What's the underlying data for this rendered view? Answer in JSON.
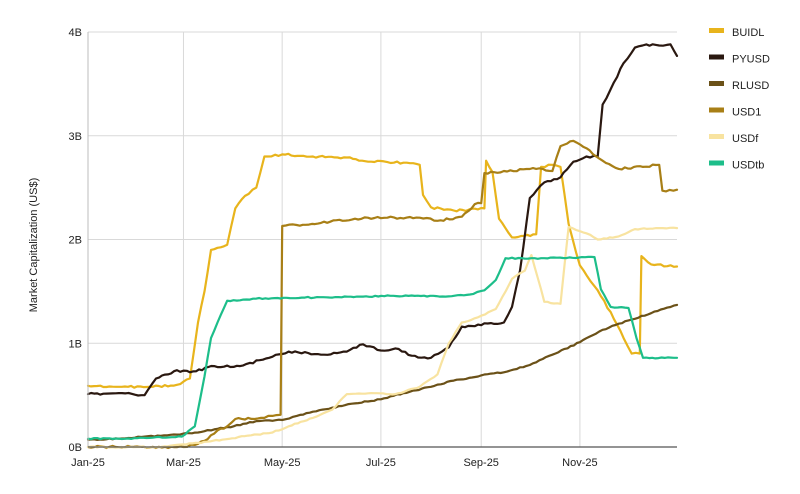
{
  "chart_data": {
    "type": "line",
    "ylabel": "Market Capitalization (US$)",
    "xlim": [
      "2025-01-01",
      "2025-12-31"
    ],
    "ylim": [
      0,
      4000000000
    ],
    "x_ticks": [
      {
        "date": "2025-01-01",
        "label": "Jan-25"
      },
      {
        "date": "2025-03-01",
        "label": "Mar-25"
      },
      {
        "date": "2025-05-01",
        "label": "May-25"
      },
      {
        "date": "2025-07-01",
        "label": "Jul-25"
      },
      {
        "date": "2025-09-01",
        "label": "Sep-25"
      },
      {
        "date": "2025-11-01",
        "label": "Nov-25"
      }
    ],
    "y_ticks": [
      {
        "value": 0,
        "label": "0B"
      },
      {
        "value": 1000000000,
        "label": "1B"
      },
      {
        "value": 2000000000,
        "label": "2B"
      },
      {
        "value": 3000000000,
        "label": "3B"
      },
      {
        "value": 4000000000,
        "label": "4B"
      }
    ],
    "grid": true,
    "legend_position": "right",
    "series": [
      {
        "name": "BUIDL",
        "color": "#E8B41C",
        "points": [
          [
            "2025-01-01",
            590000000
          ],
          [
            "2025-01-20",
            580000000
          ],
          [
            "2025-02-10",
            580000000
          ],
          [
            "2025-02-25",
            600000000
          ],
          [
            "2025-03-05",
            660000000
          ],
          [
            "2025-03-10",
            1200000000
          ],
          [
            "2025-03-14",
            1500000000
          ],
          [
            "2025-03-18",
            1900000000
          ],
          [
            "2025-03-28",
            1950000000
          ],
          [
            "2025-04-02",
            2300000000
          ],
          [
            "2025-04-08",
            2420000000
          ],
          [
            "2025-04-15",
            2500000000
          ],
          [
            "2025-04-20",
            2800000000
          ],
          [
            "2025-05-01",
            2820000000
          ],
          [
            "2025-05-20",
            2800000000
          ],
          [
            "2025-06-10",
            2790000000
          ],
          [
            "2025-06-25",
            2750000000
          ],
          [
            "2025-07-15",
            2740000000
          ],
          [
            "2025-07-25",
            2720000000
          ],
          [
            "2025-07-27",
            2430000000
          ],
          [
            "2025-08-01",
            2310000000
          ],
          [
            "2025-08-15",
            2280000000
          ],
          [
            "2025-08-30",
            2290000000
          ],
          [
            "2025-09-03",
            2300000000
          ],
          [
            "2025-09-04",
            2760000000
          ],
          [
            "2025-09-08",
            2650000000
          ],
          [
            "2025-09-12",
            2200000000
          ],
          [
            "2025-09-20",
            2020000000
          ],
          [
            "2025-10-05",
            2050000000
          ],
          [
            "2025-10-08",
            2700000000
          ],
          [
            "2025-10-15",
            2720000000
          ],
          [
            "2025-10-20",
            2700000000
          ],
          [
            "2025-10-25",
            2150000000
          ],
          [
            "2025-11-01",
            1750000000
          ],
          [
            "2025-11-10",
            1550000000
          ],
          [
            "2025-11-20",
            1300000000
          ],
          [
            "2025-11-28",
            1050000000
          ],
          [
            "2025-12-03",
            900000000
          ],
          [
            "2025-12-08",
            900000000
          ],
          [
            "2025-12-09",
            1840000000
          ],
          [
            "2025-12-15",
            1760000000
          ],
          [
            "2025-12-31",
            1740000000
          ]
        ]
      },
      {
        "name": "PYUSD",
        "color": "#2A1810",
        "points": [
          [
            "2025-01-01",
            510000000
          ],
          [
            "2025-01-20",
            520000000
          ],
          [
            "2025-02-05",
            500000000
          ],
          [
            "2025-02-12",
            660000000
          ],
          [
            "2025-02-25",
            740000000
          ],
          [
            "2025-03-05",
            720000000
          ],
          [
            "2025-03-20",
            780000000
          ],
          [
            "2025-04-05",
            780000000
          ],
          [
            "2025-04-25",
            870000000
          ],
          [
            "2025-05-05",
            920000000
          ],
          [
            "2025-05-25",
            890000000
          ],
          [
            "2025-06-10",
            920000000
          ],
          [
            "2025-06-20",
            990000000
          ],
          [
            "2025-07-01",
            930000000
          ],
          [
            "2025-07-10",
            950000000
          ],
          [
            "2025-07-20",
            880000000
          ],
          [
            "2025-08-01",
            860000000
          ],
          [
            "2025-08-12",
            960000000
          ],
          [
            "2025-08-20",
            1160000000
          ],
          [
            "2025-09-05",
            1190000000
          ],
          [
            "2025-09-15",
            1200000000
          ],
          [
            "2025-09-20",
            1350000000
          ],
          [
            "2025-09-25",
            1700000000
          ],
          [
            "2025-10-01",
            2400000000
          ],
          [
            "2025-10-10",
            2550000000
          ],
          [
            "2025-10-20",
            2600000000
          ],
          [
            "2025-10-28",
            2750000000
          ],
          [
            "2025-11-05",
            2800000000
          ],
          [
            "2025-11-12",
            2800000000
          ],
          [
            "2025-11-15",
            3300000000
          ],
          [
            "2025-11-20",
            3450000000
          ],
          [
            "2025-11-28",
            3700000000
          ],
          [
            "2025-12-05",
            3850000000
          ],
          [
            "2025-12-12",
            3880000000
          ],
          [
            "2025-12-20",
            3870000000
          ],
          [
            "2025-12-27",
            3880000000
          ],
          [
            "2025-12-31",
            3770000000
          ]
        ]
      },
      {
        "name": "RLUSD",
        "color": "#6B5118",
        "points": [
          [
            "2025-01-01",
            70000000
          ],
          [
            "2025-01-20",
            80000000
          ],
          [
            "2025-02-05",
            100000000
          ],
          [
            "2025-02-25",
            120000000
          ],
          [
            "2025-03-10",
            140000000
          ],
          [
            "2025-03-20",
            170000000
          ],
          [
            "2025-04-01",
            200000000
          ],
          [
            "2025-04-15",
            250000000
          ],
          [
            "2025-05-01",
            260000000
          ],
          [
            "2025-05-10",
            300000000
          ],
          [
            "2025-05-20",
            340000000
          ],
          [
            "2025-06-01",
            380000000
          ],
          [
            "2025-06-15",
            420000000
          ],
          [
            "2025-07-01",
            460000000
          ],
          [
            "2025-07-15",
            520000000
          ],
          [
            "2025-08-01",
            580000000
          ],
          [
            "2025-08-15",
            640000000
          ],
          [
            "2025-09-01",
            690000000
          ],
          [
            "2025-09-15",
            720000000
          ],
          [
            "2025-10-01",
            790000000
          ],
          [
            "2025-10-15",
            890000000
          ],
          [
            "2025-11-01",
            1010000000
          ],
          [
            "2025-11-15",
            1130000000
          ],
          [
            "2025-12-01",
            1220000000
          ],
          [
            "2025-12-15",
            1290000000
          ],
          [
            "2025-12-31",
            1370000000
          ]
        ]
      },
      {
        "name": "USD1",
        "color": "#A87F16",
        "points": [
          [
            "2025-01-01",
            0
          ],
          [
            "2025-03-01",
            0
          ],
          [
            "2025-03-08",
            20000000
          ],
          [
            "2025-03-14",
            60000000
          ],
          [
            "2025-03-22",
            160000000
          ],
          [
            "2025-03-28",
            200000000
          ],
          [
            "2025-04-02",
            270000000
          ],
          [
            "2025-04-20",
            280000000
          ],
          [
            "2025-04-25",
            300000000
          ],
          [
            "2025-04-30",
            310000000
          ],
          [
            "2025-05-01",
            2130000000
          ],
          [
            "2025-05-10",
            2140000000
          ],
          [
            "2025-05-25",
            2160000000
          ],
          [
            "2025-06-15",
            2200000000
          ],
          [
            "2025-07-05",
            2210000000
          ],
          [
            "2025-07-25",
            2210000000
          ],
          [
            "2025-08-05",
            2180000000
          ],
          [
            "2025-08-20",
            2220000000
          ],
          [
            "2025-08-28",
            2340000000
          ],
          [
            "2025-09-01",
            2350000000
          ],
          [
            "2025-09-03",
            2640000000
          ],
          [
            "2025-09-15",
            2660000000
          ],
          [
            "2025-10-05",
            2680000000
          ],
          [
            "2025-10-15",
            2660000000
          ],
          [
            "2025-10-20",
            2900000000
          ],
          [
            "2025-10-28",
            2950000000
          ],
          [
            "2025-11-05",
            2880000000
          ],
          [
            "2025-11-15",
            2760000000
          ],
          [
            "2025-11-25",
            2680000000
          ],
          [
            "2025-12-10",
            2700000000
          ],
          [
            "2025-12-20",
            2720000000
          ],
          [
            "2025-12-22",
            2470000000
          ],
          [
            "2025-12-31",
            2480000000
          ]
        ]
      },
      {
        "name": "USDf",
        "color": "#F8E3A0",
        "points": [
          [
            "2025-01-01",
            0
          ],
          [
            "2025-02-15",
            0
          ],
          [
            "2025-02-25",
            20000000
          ],
          [
            "2025-03-10",
            40000000
          ],
          [
            "2025-03-25",
            70000000
          ],
          [
            "2025-04-10",
            110000000
          ],
          [
            "2025-04-25",
            140000000
          ],
          [
            "2025-05-05",
            200000000
          ],
          [
            "2025-05-20",
            280000000
          ],
          [
            "2025-06-01",
            360000000
          ],
          [
            "2025-06-10",
            510000000
          ],
          [
            "2025-06-25",
            520000000
          ],
          [
            "2025-07-10",
            510000000
          ],
          [
            "2025-07-25",
            580000000
          ],
          [
            "2025-08-05",
            700000000
          ],
          [
            "2025-08-12",
            1000000000
          ],
          [
            "2025-08-20",
            1200000000
          ],
          [
            "2025-08-30",
            1250000000
          ],
          [
            "2025-09-10",
            1330000000
          ],
          [
            "2025-09-20",
            1620000000
          ],
          [
            "2025-09-28",
            1700000000
          ],
          [
            "2025-10-02",
            1850000000
          ],
          [
            "2025-10-10",
            1400000000
          ],
          [
            "2025-10-20",
            1380000000
          ],
          [
            "2025-10-25",
            2120000000
          ],
          [
            "2025-11-01",
            2080000000
          ],
          [
            "2025-11-05",
            2060000000
          ],
          [
            "2025-11-12",
            2000000000
          ],
          [
            "2025-11-25",
            2030000000
          ],
          [
            "2025-12-05",
            2100000000
          ],
          [
            "2025-12-20",
            2110000000
          ],
          [
            "2025-12-31",
            2110000000
          ]
        ]
      },
      {
        "name": "USDtb",
        "color": "#1DBE8A",
        "points": [
          [
            "2025-01-01",
            80000000
          ],
          [
            "2025-01-20",
            80000000
          ],
          [
            "2025-02-10",
            90000000
          ],
          [
            "2025-02-28",
            100000000
          ],
          [
            "2025-03-08",
            200000000
          ],
          [
            "2025-03-14",
            680000000
          ],
          [
            "2025-03-18",
            1050000000
          ],
          [
            "2025-03-22",
            1200000000
          ],
          [
            "2025-03-28",
            1410000000
          ],
          [
            "2025-04-15",
            1430000000
          ],
          [
            "2025-05-15",
            1440000000
          ],
          [
            "2025-06-20",
            1450000000
          ],
          [
            "2025-07-20",
            1460000000
          ],
          [
            "2025-08-10",
            1450000000
          ],
          [
            "2025-08-25",
            1470000000
          ],
          [
            "2025-09-03",
            1510000000
          ],
          [
            "2025-09-10",
            1610000000
          ],
          [
            "2025-09-16",
            1820000000
          ],
          [
            "2025-10-10",
            1820000000
          ],
          [
            "2025-11-10",
            1830000000
          ],
          [
            "2025-11-14",
            1520000000
          ],
          [
            "2025-11-20",
            1350000000
          ],
          [
            "2025-12-01",
            1340000000
          ],
          [
            "2025-12-06",
            1050000000
          ],
          [
            "2025-12-10",
            860000000
          ],
          [
            "2025-12-31",
            860000000
          ]
        ]
      }
    ]
  }
}
